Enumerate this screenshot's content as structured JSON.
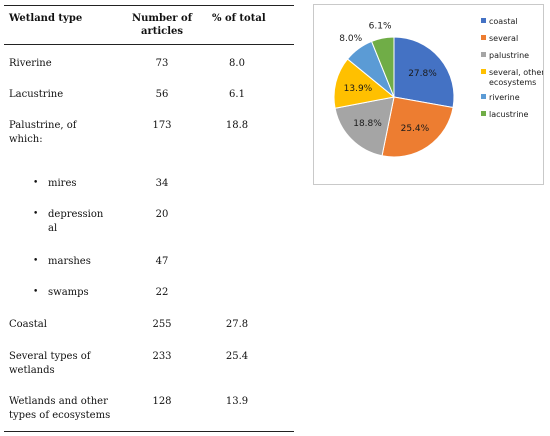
{
  "table": {
    "headers": {
      "type": "Wetland type",
      "count_line1": "Number of",
      "count_line2": "articles",
      "pct": "% of total"
    },
    "rows": [
      {
        "type": "Riverine",
        "count": "73",
        "pct": "8.0"
      },
      {
        "type": "Lacustrine",
        "count": "56",
        "pct": "6.1"
      },
      {
        "type_line1": "Palustrine, of",
        "type_line2": "which:",
        "count": "173",
        "pct": "18.8"
      },
      {
        "type": "mires",
        "count": "34",
        "bullet": "•"
      },
      {
        "type_line1": "depression",
        "type_line2": "al",
        "count": "20",
        "bullet": "•"
      },
      {
        "type": "marshes",
        "count": "47",
        "bullet": "•"
      },
      {
        "type": "swamps",
        "count": "22",
        "bullet": "•"
      },
      {
        "type": "Coastal",
        "count": "255",
        "pct": "27.8"
      },
      {
        "type_line1": "Several types of",
        "type_line2": "wetlands",
        "count": "233",
        "pct": "25.4"
      },
      {
        "type_line1": "Wetlands and other",
        "type_line2": "types of ecosystems",
        "count": "128",
        "pct": "13.9"
      }
    ]
  },
  "chart_data": {
    "type": "pie",
    "categories": [
      "coastal",
      "several",
      "palustrine",
      "several, other ecosystems",
      "riverine",
      "lacustrine"
    ],
    "legend_lines": [
      [
        "coastal"
      ],
      [
        "several"
      ],
      [
        "palustrine"
      ],
      [
        "several, other",
        "ecosystems"
      ],
      [
        "riverine"
      ],
      [
        "lacustrine"
      ]
    ],
    "values": [
      27.8,
      25.4,
      18.8,
      13.9,
      8.0,
      6.1
    ],
    "labels": [
      "27.8%",
      "25.4%",
      "18.8%",
      "13.9%",
      "8.0%",
      "6.1%"
    ],
    "colors": [
      "#4472C4",
      "#ED7D31",
      "#A5A5A5",
      "#FFC000",
      "#5B9BD5",
      "#70AD47"
    ],
    "legend_position": "right",
    "start_angle": "top, clockwise"
  }
}
